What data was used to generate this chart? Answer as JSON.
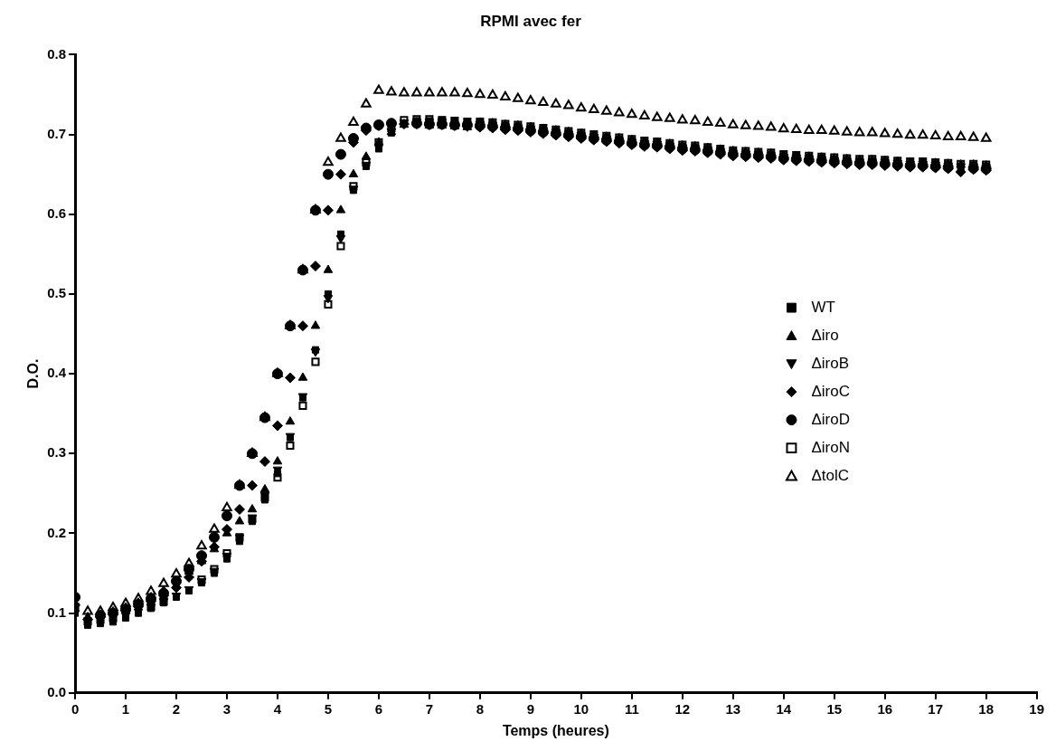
{
  "chart_data": {
    "type": "scatter",
    "title": "RPMI avec fer",
    "xlabel": "Temps (heures)",
    "ylabel": "D.O.",
    "x": [
      0,
      0.25,
      0.5,
      0.75,
      1,
      1.25,
      1.5,
      1.75,
      2,
      2.25,
      2.5,
      2.75,
      3,
      3.25,
      3.5,
      3.75,
      4,
      4.25,
      4.5,
      4.75,
      5,
      5.25,
      5.5,
      5.75,
      6,
      6.25,
      6.5,
      6.75,
      7,
      7.25,
      7.5,
      7.75,
      8,
      8.25,
      8.5,
      8.75,
      9,
      9.25,
      9.5,
      9.75,
      10,
      10.25,
      10.5,
      10.75,
      11,
      11.25,
      11.5,
      11.75,
      12,
      12.25,
      12.5,
      12.75,
      13,
      13.25,
      13.5,
      13.75,
      14,
      14.25,
      14.5,
      14.75,
      15,
      15.25,
      15.5,
      15.75,
      16,
      16.25,
      16.5,
      16.75,
      17,
      17.25,
      17.5,
      17.75,
      18
    ],
    "xlim": [
      0,
      19
    ],
    "xticks": [
      0,
      1,
      2,
      3,
      4,
      5,
      6,
      7,
      8,
      9,
      10,
      11,
      12,
      13,
      14,
      15,
      16,
      17,
      18,
      19
    ],
    "ylim": [
      0,
      0.8
    ],
    "yticks": [
      {
        "value": 0,
        "label": "0.0"
      },
      0.1,
      0.2,
      0.3,
      0.4,
      0.5,
      0.6,
      0.7,
      0.8
    ],
    "grid": false,
    "legend": "right",
    "series": [
      {
        "name": "WT",
        "color": "#000000",
        "marker": "square",
        "values": [
          0.1,
          0.085,
          0.087,
          0.089,
          0.094,
          0.1,
          0.106,
          0.113,
          0.12,
          0.128,
          0.138,
          0.15,
          0.168,
          0.19,
          0.215,
          0.242,
          0.275,
          0.32,
          0.37,
          0.43,
          0.5,
          0.575,
          0.63,
          0.66,
          0.682,
          0.702,
          0.714,
          0.717,
          0.717,
          0.718,
          0.717,
          0.716,
          0.714,
          0.713,
          0.711,
          0.71,
          0.708,
          0.706,
          0.704,
          0.702,
          0.7,
          0.698,
          0.696,
          0.694,
          0.692,
          0.69,
          0.689,
          0.687,
          0.685,
          0.684,
          0.682,
          0.68,
          0.678,
          0.677,
          0.676,
          0.675,
          0.673,
          0.672,
          0.671,
          0.67,
          0.669,
          0.668,
          0.667,
          0.667,
          0.666,
          0.665,
          0.664,
          0.664,
          0.663,
          0.662,
          0.658,
          0.661,
          0.66
        ]
      },
      {
        "name": "Δiro",
        "color": "#000000",
        "marker": "triangle",
        "values": [
          0.105,
          0.095,
          0.098,
          0.102,
          0.107,
          0.113,
          0.12,
          0.128,
          0.14,
          0.152,
          0.165,
          0.18,
          0.2,
          0.215,
          0.23,
          0.255,
          0.29,
          0.34,
          0.395,
          0.46,
          0.53,
          0.605,
          0.65,
          0.672,
          0.69,
          0.703,
          0.712,
          0.715,
          0.711,
          0.711,
          0.71,
          0.709,
          0.715,
          0.714,
          0.712,
          0.711,
          0.709,
          0.707,
          0.705,
          0.703,
          0.701,
          0.699,
          0.697,
          0.695,
          0.693,
          0.691,
          0.69,
          0.688,
          0.686,
          0.685,
          0.683,
          0.681,
          0.679,
          0.678,
          0.677,
          0.676,
          0.674,
          0.673,
          0.672,
          0.671,
          0.67,
          0.669,
          0.668,
          0.668,
          0.667,
          0.666,
          0.665,
          0.665,
          0.664,
          0.663,
          0.662,
          0.662,
          0.661
        ]
      },
      {
        "name": "ΔiroB",
        "color": "#000000",
        "marker": "triangle-down",
        "values": [
          null,
          null,
          null,
          null,
          0.097,
          0.102,
          0.108,
          0.115,
          0.122,
          0.13,
          0.14,
          0.153,
          0.172,
          0.195,
          0.22,
          0.248,
          0.28,
          0.322,
          0.372,
          0.428,
          0.495,
          0.57,
          0.632,
          0.662,
          0.685,
          0.704,
          0.715,
          0.716,
          0.716,
          0.716,
          null,
          null,
          0.713,
          0.712,
          0.71,
          0.709,
          0.707,
          0.705,
          0.703,
          0.701,
          0.699,
          0.697,
          0.695,
          0.693,
          0.691,
          0.689,
          0.688,
          0.686,
          0.684,
          0.683,
          0.681,
          0.679,
          0.677,
          0.676,
          0.675,
          0.674,
          0.672,
          0.671,
          0.67,
          0.669,
          0.668,
          0.667,
          0.666,
          0.666,
          0.665,
          0.664,
          0.663,
          0.663,
          0.662,
          0.661,
          0.66,
          0.66,
          0.659
        ]
      },
      {
        "name": "ΔiroC",
        "color": "#000000",
        "marker": "diamond",
        "values": [
          0.11,
          0.092,
          0.095,
          0.098,
          0.103,
          0.108,
          0.115,
          0.122,
          0.132,
          0.145,
          0.165,
          0.183,
          0.205,
          0.23,
          0.26,
          0.29,
          0.335,
          0.395,
          0.46,
          0.535,
          0.605,
          0.65,
          0.69,
          0.705,
          0.711,
          0.713,
          0.713,
          0.713,
          0.712,
          0.712,
          0.711,
          0.71,
          0.709,
          0.708,
          0.706,
          0.705,
          0.703,
          0.701,
          0.699,
          0.697,
          0.695,
          0.693,
          0.691,
          0.689,
          0.687,
          0.685,
          0.684,
          0.682,
          0.68,
          0.679,
          0.677,
          0.675,
          0.673,
          0.672,
          0.671,
          0.67,
          0.668,
          0.667,
          0.666,
          0.665,
          0.664,
          0.663,
          0.662,
          0.662,
          0.661,
          0.66,
          0.659,
          0.659,
          0.658,
          0.657,
          0.653,
          0.656,
          0.655
        ]
      },
      {
        "name": "ΔiroD",
        "color": "#000000",
        "marker": "circle",
        "values": [
          0.12,
          null,
          0.097,
          0.1,
          0.105,
          0.111,
          0.118,
          0.125,
          0.14,
          0.155,
          0.172,
          0.195,
          0.222,
          0.26,
          0.3,
          0.345,
          0.4,
          0.46,
          0.53,
          0.605,
          0.65,
          0.675,
          0.695,
          0.708,
          0.712,
          0.714,
          null,
          0.714,
          0.713,
          0.713,
          0.712,
          0.712,
          0.711,
          0.71,
          0.708,
          0.707,
          0.705,
          0.703,
          0.701,
          0.699,
          0.697,
          0.695,
          0.693,
          0.691,
          0.689,
          0.687,
          0.686,
          0.684,
          0.682,
          0.681,
          0.679,
          0.677,
          0.675,
          0.674,
          0.673,
          0.672,
          0.67,
          0.669,
          0.668,
          0.667,
          0.666,
          0.665,
          0.664,
          0.664,
          0.663,
          0.662,
          0.661,
          0.661,
          0.66,
          0.659,
          null,
          0.658,
          0.657
        ]
      },
      {
        "name": "ΔiroN",
        "color": "#000000",
        "marker": "square-open",
        "values": [
          0.108,
          0.09,
          0.092,
          0.094,
          null,
          null,
          0.108,
          0.115,
          null,
          null,
          0.142,
          0.155,
          0.175,
          0.195,
          0.218,
          0.245,
          0.27,
          0.31,
          0.36,
          0.415,
          0.487,
          0.56,
          0.635,
          0.665,
          0.69,
          0.708,
          0.718,
          0.719,
          0.719,
          0.718,
          0.717,
          0.716,
          0.716,
          0.715,
          0.713,
          0.712,
          0.71,
          0.708,
          0.706,
          0.704,
          0.702,
          0.7,
          0.698,
          0.696,
          0.694,
          0.692,
          0.691,
          0.689,
          0.687,
          0.686,
          0.684,
          0.682,
          0.68,
          0.679,
          0.678,
          0.677,
          0.675,
          0.674,
          0.673,
          0.672,
          0.671,
          0.67,
          0.669,
          0.669,
          0.668,
          0.667,
          0.666,
          0.666,
          0.665,
          0.664,
          0.663,
          0.663,
          0.662
        ]
      },
      {
        "name": "ΔtolC",
        "color": "#000000",
        "marker": "triangle-open",
        "values": [
          null,
          0.102,
          0.102,
          0.107,
          0.112,
          0.118,
          0.127,
          0.137,
          0.149,
          0.162,
          0.184,
          0.205,
          0.232,
          0.26,
          0.3,
          0.345,
          0.4,
          0.46,
          0.53,
          0.605,
          0.665,
          0.695,
          0.715,
          0.738,
          0.755,
          0.753,
          0.752,
          0.752,
          0.752,
          0.752,
          0.752,
          0.751,
          0.75,
          0.749,
          0.747,
          0.745,
          0.742,
          0.74,
          0.738,
          0.736,
          0.733,
          0.731,
          0.729,
          0.727,
          0.725,
          0.723,
          0.721,
          0.72,
          0.718,
          0.717,
          0.715,
          0.714,
          0.712,
          0.711,
          0.71,
          0.709,
          0.707,
          0.706,
          0.705,
          0.705,
          0.704,
          0.703,
          0.702,
          0.702,
          0.701,
          0.7,
          0.699,
          0.699,
          0.698,
          0.697,
          0.697,
          0.696,
          0.695
        ]
      }
    ]
  }
}
